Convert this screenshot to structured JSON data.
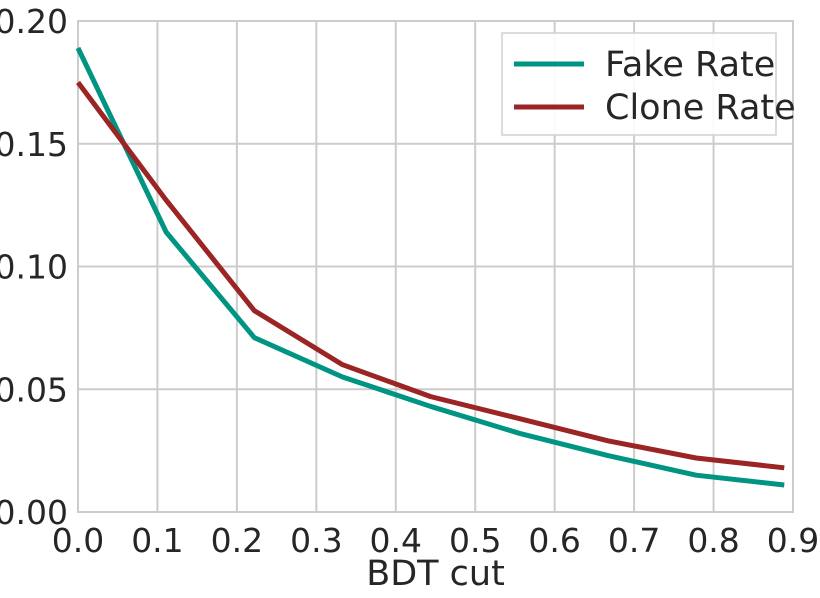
{
  "chart_data": {
    "type": "line",
    "title": "",
    "xlabel": "BDT cut",
    "ylabel": "",
    "xlim": [
      0.0,
      0.9
    ],
    "ylim": [
      0.0,
      0.2
    ],
    "xticks": [
      "0.0",
      "0.1",
      "0.2",
      "0.3",
      "0.4",
      "0.5",
      "0.6",
      "0.7",
      "0.8",
      "0.9"
    ],
    "yticks": [
      "0.00",
      "0.05",
      "0.10",
      "0.15",
      "0.20"
    ],
    "grid": true,
    "legend_position": "top-right",
    "x": [
      0.0,
      0.111,
      0.222,
      0.333,
      0.444,
      0.556,
      0.667,
      0.778,
      0.889
    ],
    "series": [
      {
        "name": "Fake Rate",
        "color": "#009483",
        "values": [
          0.189,
          0.114,
          0.071,
          0.055,
          0.043,
          0.032,
          0.023,
          0.015,
          0.011
        ]
      },
      {
        "name": "Clone Rate",
        "color": "#9b2424",
        "values": [
          0.175,
          0.127,
          0.082,
          0.06,
          0.047,
          0.038,
          0.029,
          0.022,
          0.018
        ]
      }
    ]
  }
}
